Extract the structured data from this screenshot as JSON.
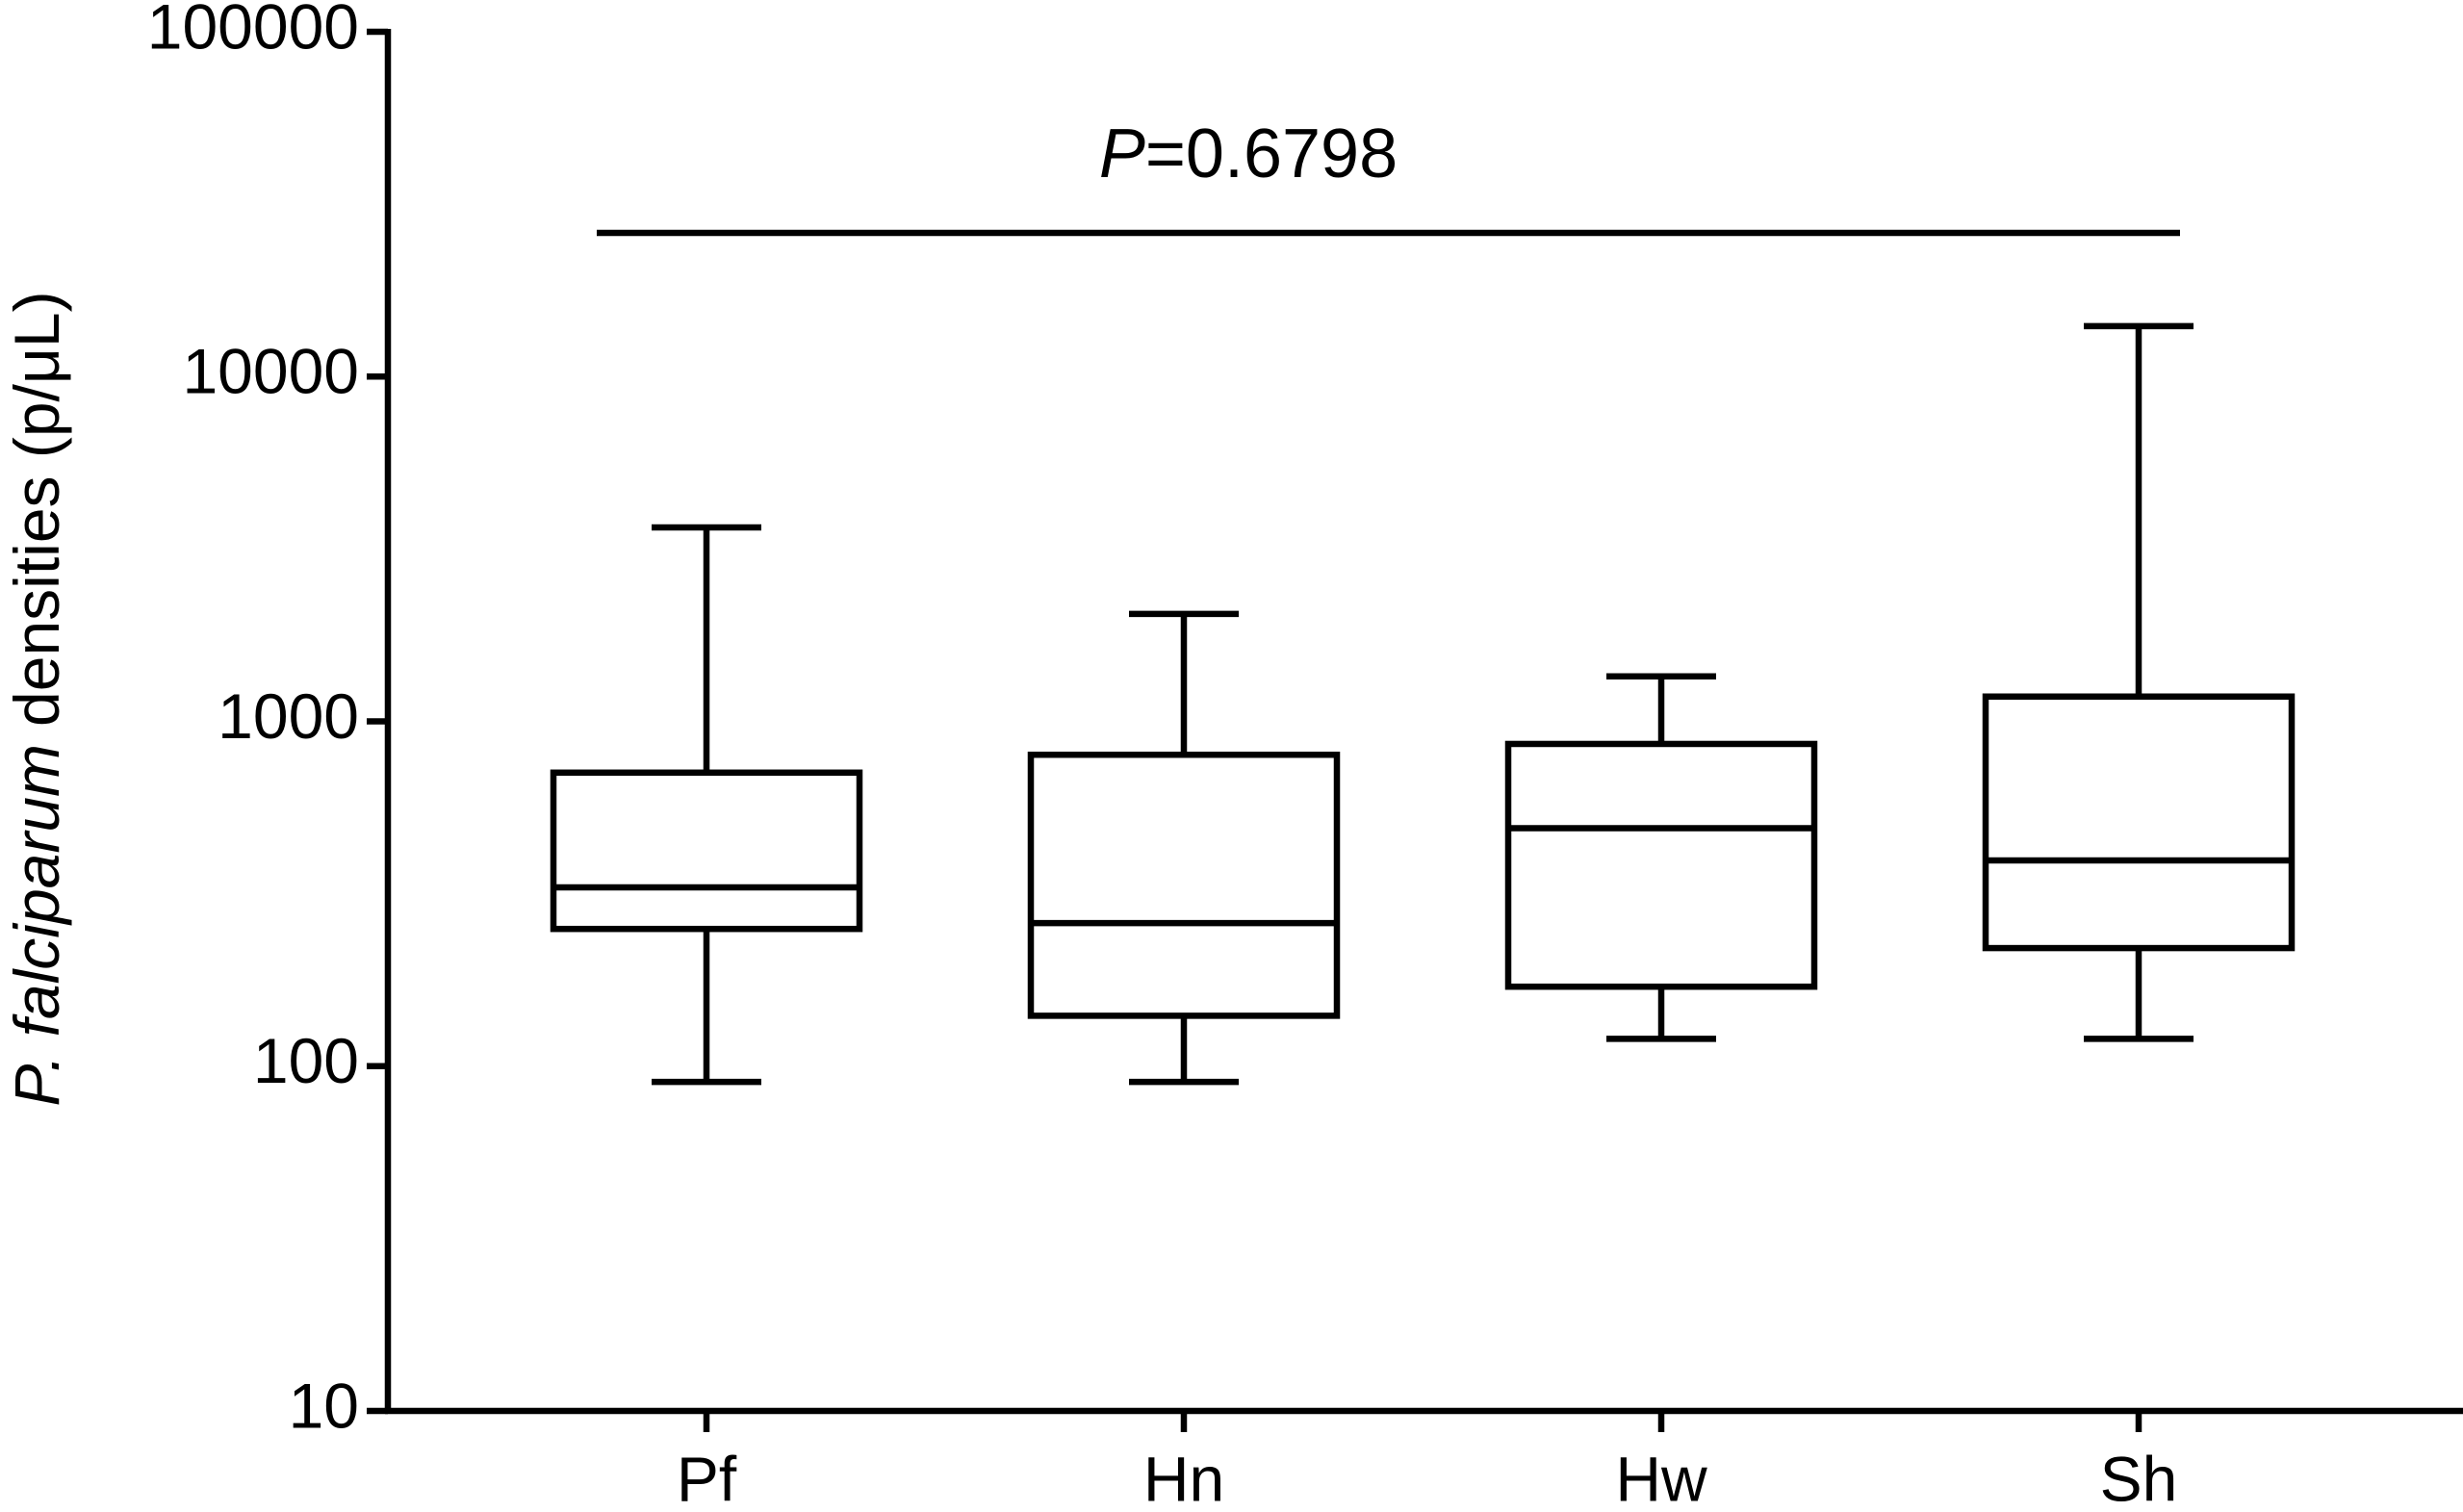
{
  "chart_data": {
    "type": "box",
    "ylabel": [
      "P. falciparum",
      "densities (p/μL)"
    ],
    "annotation": [
      "P",
      "=0.6798"
    ],
    "categories": [
      "Pf",
      "Hn",
      "Hw",
      "Sh"
    ],
    "boxes": [
      {
        "min": 90,
        "q1": 250,
        "median": 330,
        "q3": 710,
        "max": 3650
      },
      {
        "min": 90,
        "q1": 140,
        "median": 260,
        "q3": 800,
        "max": 2050
      },
      {
        "min": 120,
        "q1": 170,
        "median": 490,
        "q3": 860,
        "max": 1350
      },
      {
        "min": 120,
        "q1": 220,
        "median": 395,
        "q3": 1180,
        "max": 14000
      }
    ],
    "color": "#000000",
    "log_scale": true,
    "ylim": [
      10,
      100000
    ],
    "yticks": [
      10,
      100,
      1000,
      10000,
      100000
    ]
  }
}
